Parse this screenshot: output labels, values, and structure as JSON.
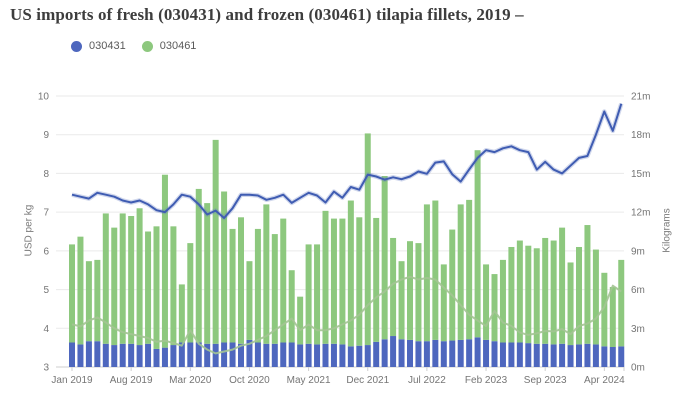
{
  "title": "US imports of fresh (030431) and frozen (030461) tilapia fillets, 2019 –",
  "legend": [
    {
      "label": "030431",
      "color": "#4e67be"
    },
    {
      "label": "030461",
      "color": "#8dc87e"
    }
  ],
  "y_left": {
    "label": "USD per kg",
    "min": 3,
    "max": 10,
    "ticks": [
      3,
      4,
      5,
      6,
      7,
      8,
      9,
      10
    ]
  },
  "y_right": {
    "label": "Kilograms",
    "min": 0,
    "max": 21,
    "ticks": [
      "0m",
      "3m",
      "6m",
      "9m",
      "12m",
      "15m",
      "18m",
      "21m"
    ]
  },
  "x_axis": {
    "tick_every_months": 7,
    "tick_labels": [
      "Jan 2019",
      "Aug 2019",
      "Mar 2020",
      "Oct 2020",
      "May 2021",
      "Dec 2021",
      "Jul 2022",
      "Feb 2023",
      "Sep 2023",
      "Apr 2024"
    ]
  },
  "colors": {
    "bar_fresh": "#4e67be",
    "bar_frozen": "#8dc87e",
    "line_fresh": "#3f5cb2",
    "line_fresh_halo": "rgba(99,124,191,0.30)",
    "line_frozen": "#a3c494",
    "grid": "#eaeaea",
    "axis_line": "#cfcfcf",
    "tick_text": "#757575"
  },
  "chart_data": {
    "type": "composite",
    "subtype": "stacked-bars-with-lines",
    "title": "US imports of fresh (030431) and frozen (030461) tilapia fillets, 2019 –",
    "x": [
      "Jan 2019",
      "Feb 2019",
      "Mar 2019",
      "Apr 2019",
      "May 2019",
      "Jun 2019",
      "Jul 2019",
      "Aug 2019",
      "Sep 2019",
      "Oct 2019",
      "Nov 2019",
      "Dec 2019",
      "Jan 2020",
      "Feb 2020",
      "Mar 2020",
      "Apr 2020",
      "May 2020",
      "Jun 2020",
      "Jul 2020",
      "Aug 2020",
      "Sep 2020",
      "Oct 2020",
      "Nov 2020",
      "Dec 2020",
      "Jan 2021",
      "Feb 2021",
      "Mar 2021",
      "Apr 2021",
      "May 2021",
      "Jun 2021",
      "Jul 2021",
      "Aug 2021",
      "Sep 2021",
      "Oct 2021",
      "Nov 2021",
      "Dec 2021",
      "Jan 2022",
      "Feb 2022",
      "Mar 2022",
      "Apr 2022",
      "May 2022",
      "Jun 2022",
      "Jul 2022",
      "Aug 2022",
      "Sep 2022",
      "Oct 2022",
      "Nov 2022",
      "Dec 2022",
      "Jan 2023",
      "Feb 2023",
      "Mar 2023",
      "Apr 2023",
      "May 2023",
      "Jun 2023",
      "Jul 2023",
      "Aug 2023",
      "Sep 2023",
      "Oct 2023",
      "Nov 2023",
      "Dec 2023",
      "Jan 2024",
      "Feb 2024",
      "Mar 2024",
      "Apr 2024",
      "May 2024",
      "Jun 2024"
    ],
    "series": [
      {
        "name": "030431 volume",
        "type": "bar",
        "axis": "right",
        "unit": "million kg",
        "values": [
          1.9,
          1.75,
          2.0,
          2.0,
          1.8,
          1.7,
          1.8,
          1.8,
          1.7,
          1.8,
          1.4,
          1.5,
          1.7,
          1.9,
          1.9,
          1.9,
          1.8,
          1.8,
          1.9,
          1.9,
          1.8,
          2.1,
          1.9,
          1.8,
          1.8,
          1.9,
          1.9,
          1.75,
          1.8,
          1.75,
          1.8,
          1.8,
          1.75,
          1.6,
          1.65,
          1.7,
          1.95,
          2.15,
          2.4,
          2.15,
          2.1,
          2.0,
          2.0,
          2.1,
          2.0,
          2.05,
          2.1,
          2.15,
          2.3,
          2.1,
          2.0,
          1.9,
          1.9,
          1.9,
          1.85,
          1.8,
          1.8,
          1.75,
          1.8,
          1.7,
          1.75,
          1.8,
          1.75,
          1.6,
          1.55,
          1.6
        ]
      },
      {
        "name": "030461 volume",
        "type": "bar",
        "axis": "right",
        "unit": "million kg",
        "stacked_on": "030431 volume",
        "values": [
          7.6,
          8.35,
          6.2,
          6.3,
          10.1,
          9.1,
          10.1,
          9.9,
          10.6,
          8.7,
          9.5,
          13.4,
          9.2,
          4.5,
          7.7,
          11.9,
          10.9,
          15.8,
          11.7,
          8.8,
          9.8,
          6.1,
          8.8,
          10.8,
          8.5,
          9.6,
          5.6,
          3.7,
          7.7,
          7.75,
          10.3,
          9.7,
          9.75,
          11.3,
          9.95,
          16.4,
          9.6,
          12.65,
          7.6,
          6.05,
          7.65,
          7.6,
          10.6,
          10.8,
          5.95,
          8.6,
          10.5,
          10.8,
          14.5,
          5.85,
          5.2,
          6.4,
          7.4,
          7.9,
          7.55,
          7.4,
          8.2,
          8.05,
          9.0,
          6.4,
          7.55,
          9.2,
          7.35,
          5.7,
          4.65,
          6.7
        ]
      },
      {
        "name": "030431 price",
        "type": "line",
        "axis": "left",
        "unit": "USD per kg",
        "values": [
          7.45,
          7.4,
          7.35,
          7.5,
          7.45,
          7.4,
          7.3,
          7.25,
          7.3,
          7.2,
          7.05,
          7.0,
          7.2,
          7.45,
          7.4,
          7.2,
          6.94,
          7.04,
          6.85,
          7.1,
          7.45,
          7.45,
          7.43,
          7.32,
          7.37,
          7.45,
          7.24,
          7.37,
          7.5,
          7.43,
          7.25,
          7.53,
          7.37,
          7.65,
          7.58,
          7.97,
          7.92,
          7.84,
          7.9,
          7.85,
          7.92,
          8.05,
          7.99,
          8.28,
          8.31,
          7.98,
          7.79,
          8.1,
          8.4,
          8.6,
          8.55,
          8.65,
          8.7,
          8.6,
          8.55,
          8.1,
          8.3,
          8.1,
          8.0,
          8.2,
          8.4,
          8.45,
          9.0,
          9.6,
          9.1,
          9.8
        ]
      },
      {
        "name": "030461 price",
        "type": "line",
        "axis": "left",
        "unit": "USD per kg",
        "values": [
          4.1,
          4.05,
          4.2,
          4.28,
          4.15,
          4.0,
          3.9,
          3.85,
          3.8,
          3.75,
          3.65,
          3.68,
          3.62,
          3.55,
          3.95,
          3.6,
          3.45,
          3.35,
          3.4,
          3.45,
          3.55,
          3.6,
          3.7,
          3.8,
          3.95,
          4.1,
          4.25,
          3.95,
          4.1,
          3.95,
          3.95,
          4.0,
          4.1,
          4.2,
          4.35,
          4.6,
          4.8,
          4.95,
          5.15,
          5.26,
          5.33,
          5.26,
          5.3,
          5.26,
          5.05,
          4.85,
          4.6,
          4.35,
          4.2,
          4.06,
          4.45,
          4.15,
          4.06,
          3.89,
          3.83,
          3.87,
          3.93,
          3.92,
          3.98,
          3.85,
          4.06,
          4.12,
          4.25,
          4.55,
          5.1,
          4.95
        ]
      }
    ],
    "y_left_range": [
      3,
      10
    ],
    "y_right_range": [
      0,
      21
    ],
    "grid": true,
    "legend_position": "top-left"
  }
}
